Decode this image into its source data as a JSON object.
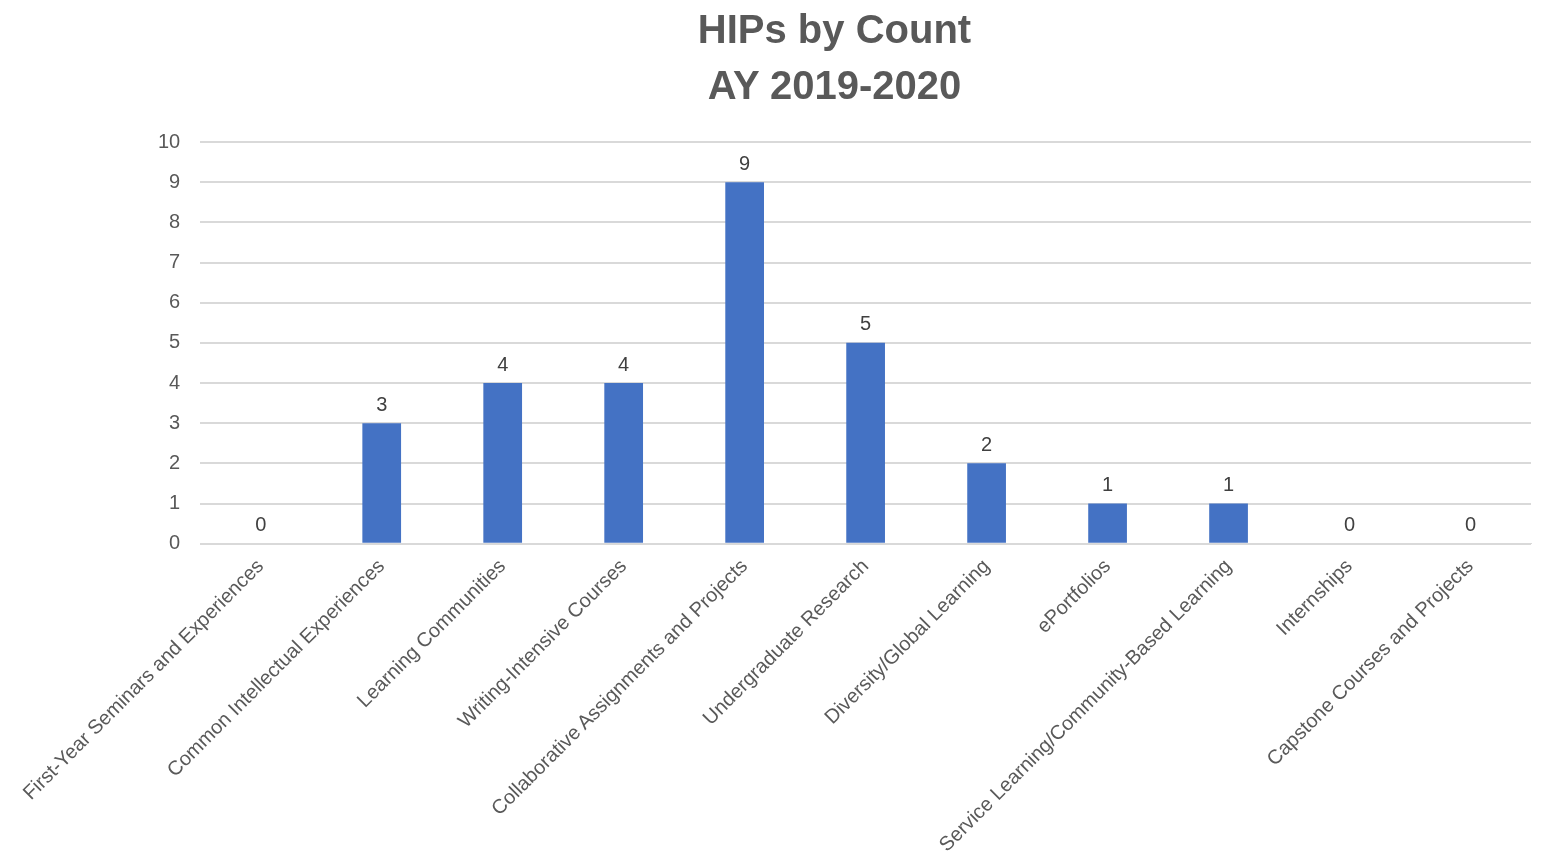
{
  "chart_data": {
    "type": "bar",
    "title": "HIPs by Count",
    "subtitle": "AY 2019-2020",
    "categories": [
      "First-Year Seminars and Experiences",
      "Common Intellectual Experiences",
      "Learning Communities",
      "Writing-Intensive Courses",
      "Collaborative Assignments and Projects",
      "Undergraduate Research",
      "Diversity/Global Learning",
      "ePortfolios",
      "Service Learning/Community-Based Learning",
      "Internships",
      "Capstone Courses and Projects"
    ],
    "values": [
      0,
      3,
      4,
      4,
      9,
      5,
      2,
      1,
      1,
      0,
      0
    ],
    "color": "#4472c4",
    "ylim": [
      0,
      10
    ],
    "yticks": [
      0,
      1,
      2,
      3,
      4,
      5,
      6,
      7,
      8,
      9,
      10
    ],
    "grid": "y",
    "data_labels": true,
    "legend": false
  }
}
